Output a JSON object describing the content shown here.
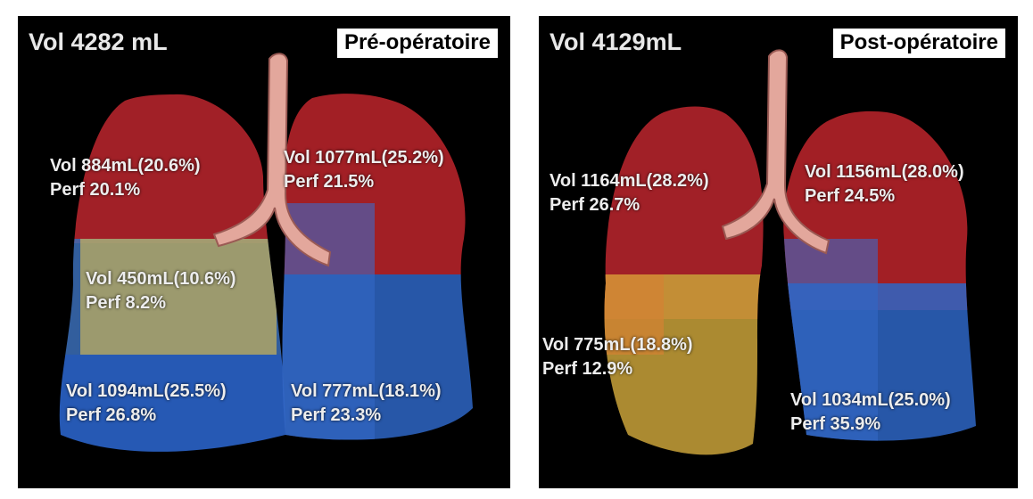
{
  "panels": [
    {
      "total": "Vol 4282 mL",
      "phase": "Pré-opératoire",
      "segments": [
        {
          "vol": "Vol 884mL(20.6%)",
          "perf": "Perf 20.1%"
        },
        {
          "vol": "Vol 1077mL(25.2%)",
          "perf": "Perf 21.5%"
        },
        {
          "vol": "Vol 450mL(10.6%)",
          "perf": "Perf 8.2%"
        },
        {
          "vol": "Vol 1094mL(25.5%)",
          "perf": "Perf 26.8%"
        },
        {
          "vol": "Vol 777mL(18.1%)",
          "perf": "Perf 23.3%"
        }
      ]
    },
    {
      "total": "Vol 4129mL",
      "phase": "Post-opératoire",
      "segments": [
        {
          "vol": "Vol 1164mL(28.2%)",
          "perf": "Perf 26.7%"
        },
        {
          "vol": "Vol 1156mL(28.0%)",
          "perf": "Perf 24.5%"
        },
        {
          "vol": "Vol 775mL(18.8%)",
          "perf": "Perf 12.9%"
        },
        {
          "vol": "Vol 1034mL(25.0%)",
          "perf": "Perf 35.9%"
        }
      ]
    }
  ],
  "colors": {
    "upper_lobe": "#c9282f",
    "lower_lobe": "#2f6ed1",
    "middle_lobe": "#d8b33a",
    "airway": "#e8a8a0",
    "background": "#000000"
  }
}
